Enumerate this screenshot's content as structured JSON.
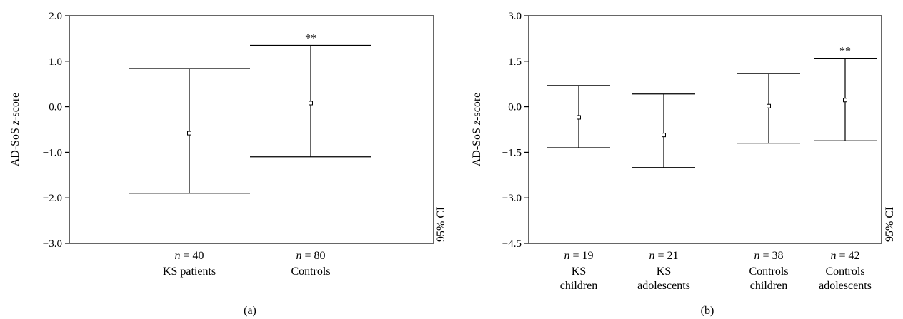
{
  "chart_data": [
    {
      "type": "errorbar",
      "panel_label": "(a)",
      "ylabel_prefix": "AD-SoS ",
      "ylabel_italic": "z",
      "ylabel_suffix": "-score",
      "right_label": "95% CI",
      "ylim": [
        -3.0,
        2.0
      ],
      "yticks": [
        "2.0",
        "1.0",
        "0.0",
        "−1.0",
        "−2.0",
        "−3.0"
      ],
      "ytick_values": [
        2.0,
        1.0,
        0.0,
        -1.0,
        -2.0,
        -3.0
      ],
      "groups": [
        {
          "n_label": "n",
          "n_text": " = 40",
          "name_lines": [
            "KS patients"
          ],
          "mean": -0.58,
          "lower": -1.9,
          "upper": 0.84,
          "annotation": ""
        },
        {
          "n_label": "n",
          "n_text": " = 80",
          "name_lines": [
            "Controls"
          ],
          "mean": 0.08,
          "lower": -1.1,
          "upper": 1.35,
          "annotation": "**"
        }
      ]
    },
    {
      "type": "errorbar",
      "panel_label": "(b)",
      "ylabel_prefix": "AD-SoS ",
      "ylabel_italic": "z",
      "ylabel_suffix": "-score",
      "right_label": "95% CI",
      "ylim": [
        -4.5,
        3.0
      ],
      "yticks": [
        "3.0",
        "1.5",
        "0.0",
        "−1.5",
        "−3.0",
        "−4.5"
      ],
      "ytick_values": [
        3.0,
        1.5,
        0.0,
        -1.5,
        -3.0,
        -4.5
      ],
      "groups": [
        {
          "n_label": "n",
          "n_text": " = 19",
          "name_lines": [
            "KS",
            "children"
          ],
          "mean": -0.35,
          "lower": -1.35,
          "upper": 0.7,
          "annotation": ""
        },
        {
          "n_label": "n",
          "n_text": " = 21",
          "name_lines": [
            "KS",
            "adolescents"
          ],
          "mean": -0.93,
          "lower": -2.0,
          "upper": 0.42,
          "annotation": ""
        },
        {
          "n_label": "n",
          "n_text": " = 38",
          "name_lines": [
            "Controls",
            "children"
          ],
          "mean": 0.02,
          "lower": -1.2,
          "upper": 1.1,
          "annotation": ""
        },
        {
          "n_label": "n",
          "n_text": " = 42",
          "name_lines": [
            "Controls",
            "adolescents"
          ],
          "mean": 0.22,
          "lower": -1.12,
          "upper": 1.6,
          "annotation": "**"
        }
      ]
    }
  ]
}
